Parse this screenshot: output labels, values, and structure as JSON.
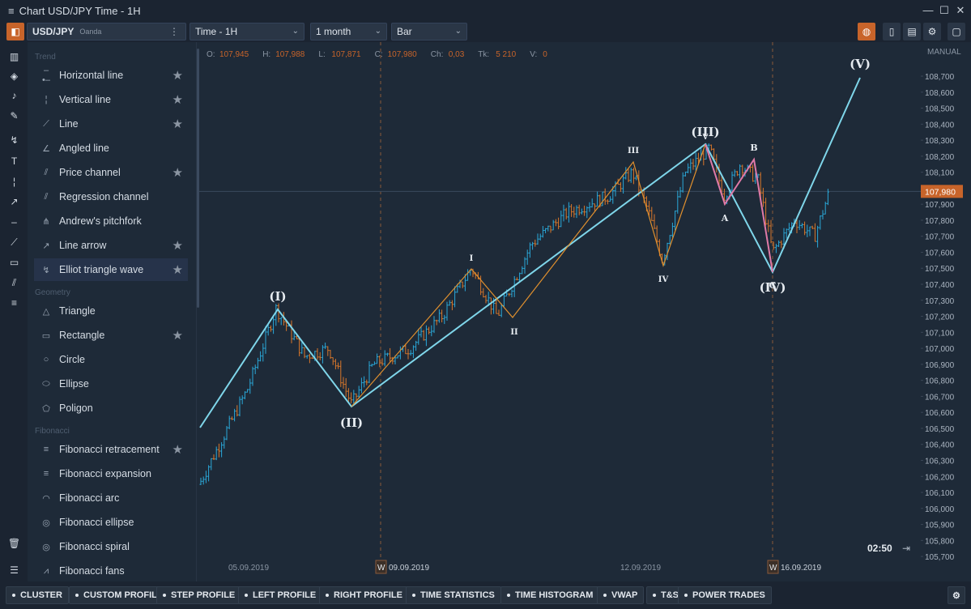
{
  "window": {
    "title": "Chart USD/JPY Time - 1H",
    "menu_icon": "≡",
    "minimize": "—",
    "maximize": "☐",
    "close": "✕"
  },
  "toolbar": {
    "symbol": "USD/JPY",
    "exchange": "Oanda",
    "timeframe": "Time - 1H",
    "period": "1 month",
    "chart_type": "Bar"
  },
  "ohlc": {
    "o_label": "O:",
    "o": "107,945",
    "h_label": "H:",
    "h": "107,988",
    "l_label": "L:",
    "l": "107,871",
    "c_label": "C:",
    "c": "107,980",
    "ch_label": "Ch:",
    "ch": "0,03",
    "tk_label": "Tk:",
    "tk": "5 210",
    "v_label": "V:",
    "v": "0"
  },
  "panel": {
    "sections": {
      "trend": "Trend",
      "geometry": "Geometry",
      "fibonacci": "Fibonacci"
    },
    "trend_items": [
      {
        "label": "Horizontal line",
        "icon": "horizontal-line-icon",
        "glyph": "–•–",
        "star": true
      },
      {
        "label": "Vertical line",
        "icon": "vertical-line-icon",
        "glyph": "¦",
        "star": true
      },
      {
        "label": "Line",
        "icon": "line-icon",
        "glyph": "⟋",
        "star": true
      },
      {
        "label": "Angled line",
        "icon": "angled-line-icon",
        "glyph": "∠",
        "star": false
      },
      {
        "label": "Price channel",
        "icon": "price-channel-icon",
        "glyph": "⫽",
        "star": true
      },
      {
        "label": "Regression channel",
        "icon": "regression-channel-icon",
        "glyph": "⫽",
        "star": false
      },
      {
        "label": "Andrew's pitchfork",
        "icon": "pitchfork-icon",
        "glyph": "⋔",
        "star": false
      },
      {
        "label": "Line arrow",
        "icon": "line-arrow-icon",
        "glyph": "↗",
        "star": true
      },
      {
        "label": "Elliot triangle wave",
        "icon": "elliot-wave-icon",
        "glyph": "↯",
        "star": true
      }
    ],
    "geometry_items": [
      {
        "label": "Triangle",
        "icon": "triangle-icon",
        "glyph": "△",
        "star": false
      },
      {
        "label": "Rectangle",
        "icon": "rectangle-icon",
        "glyph": "▭",
        "star": true
      },
      {
        "label": "Circle",
        "icon": "circle-icon",
        "glyph": "○",
        "star": false
      },
      {
        "label": "Ellipse",
        "icon": "ellipse-icon",
        "glyph": "⬭",
        "star": false
      },
      {
        "label": "Poligon",
        "icon": "polygon-icon",
        "glyph": "⬠",
        "star": false
      }
    ],
    "fibonacci_items": [
      {
        "label": "Fibonacci retracement",
        "icon": "fib-retracement-icon",
        "glyph": "≡",
        "star": true
      },
      {
        "label": "Fibonacci expansion",
        "icon": "fib-expansion-icon",
        "glyph": "≡",
        "star": false
      },
      {
        "label": "Fibonacci arc",
        "icon": "fib-arc-icon",
        "glyph": "◠",
        "star": false
      },
      {
        "label": "Fibonacci ellipse",
        "icon": "fib-ellipse-icon",
        "glyph": "◎",
        "star": false
      },
      {
        "label": "Fibonacci spiral",
        "icon": "fib-spiral-icon",
        "glyph": "◎",
        "star": false
      },
      {
        "label": "Fibonacci fans",
        "icon": "fib-fans-icon",
        "glyph": "⩘",
        "star": false
      }
    ]
  },
  "price_axis": {
    "mode": "MANUAL",
    "current_price": "107,980",
    "ticks": [
      "108,700",
      "108,600",
      "108,500",
      "108,400",
      "108,300",
      "108,200",
      "108,100",
      "108,000",
      "107,900",
      "107,800",
      "107,700",
      "107,600",
      "107,500",
      "107,400",
      "107,300",
      "107,200",
      "107,100",
      "107,000",
      "106,900",
      "106,800",
      "106,700",
      "106,600",
      "106,500",
      "106,400",
      "106,300",
      "106,200",
      "106,100",
      "106,000",
      "105,900",
      "105,800",
      "105,700"
    ]
  },
  "time_axis": {
    "labels": [
      "05.09.2019",
      "09.09.2019",
      "12.09.2019",
      "16.09.2019"
    ],
    "week_marker": "W",
    "countdown": "02:50"
  },
  "wave_labels": {
    "major": [
      "(I)",
      "(II)",
      "(III)",
      "(IV)",
      "(V)"
    ],
    "minor": [
      "I",
      "II",
      "III",
      "IV",
      "V"
    ],
    "correction": [
      "A",
      "B",
      "C"
    ]
  },
  "bottom_buttons": [
    "CLUSTER",
    "CUSTOM PROFILE",
    "STEP PROFILE",
    "LEFT PROFILE",
    "RIGHT PROFILE",
    "TIME STATISTICS",
    "TIME HISTOGRAM",
    "VWAP",
    "T&S",
    "POWER TRADES"
  ],
  "colors": {
    "bg": "#1e2a38",
    "bull": "#2aa8d8",
    "bear": "#d9772a",
    "wave_major": "#7fd6ea",
    "wave_minor": "#e0902e",
    "wave_corr": "#e07aa8",
    "accent": "#c8642a"
  }
}
